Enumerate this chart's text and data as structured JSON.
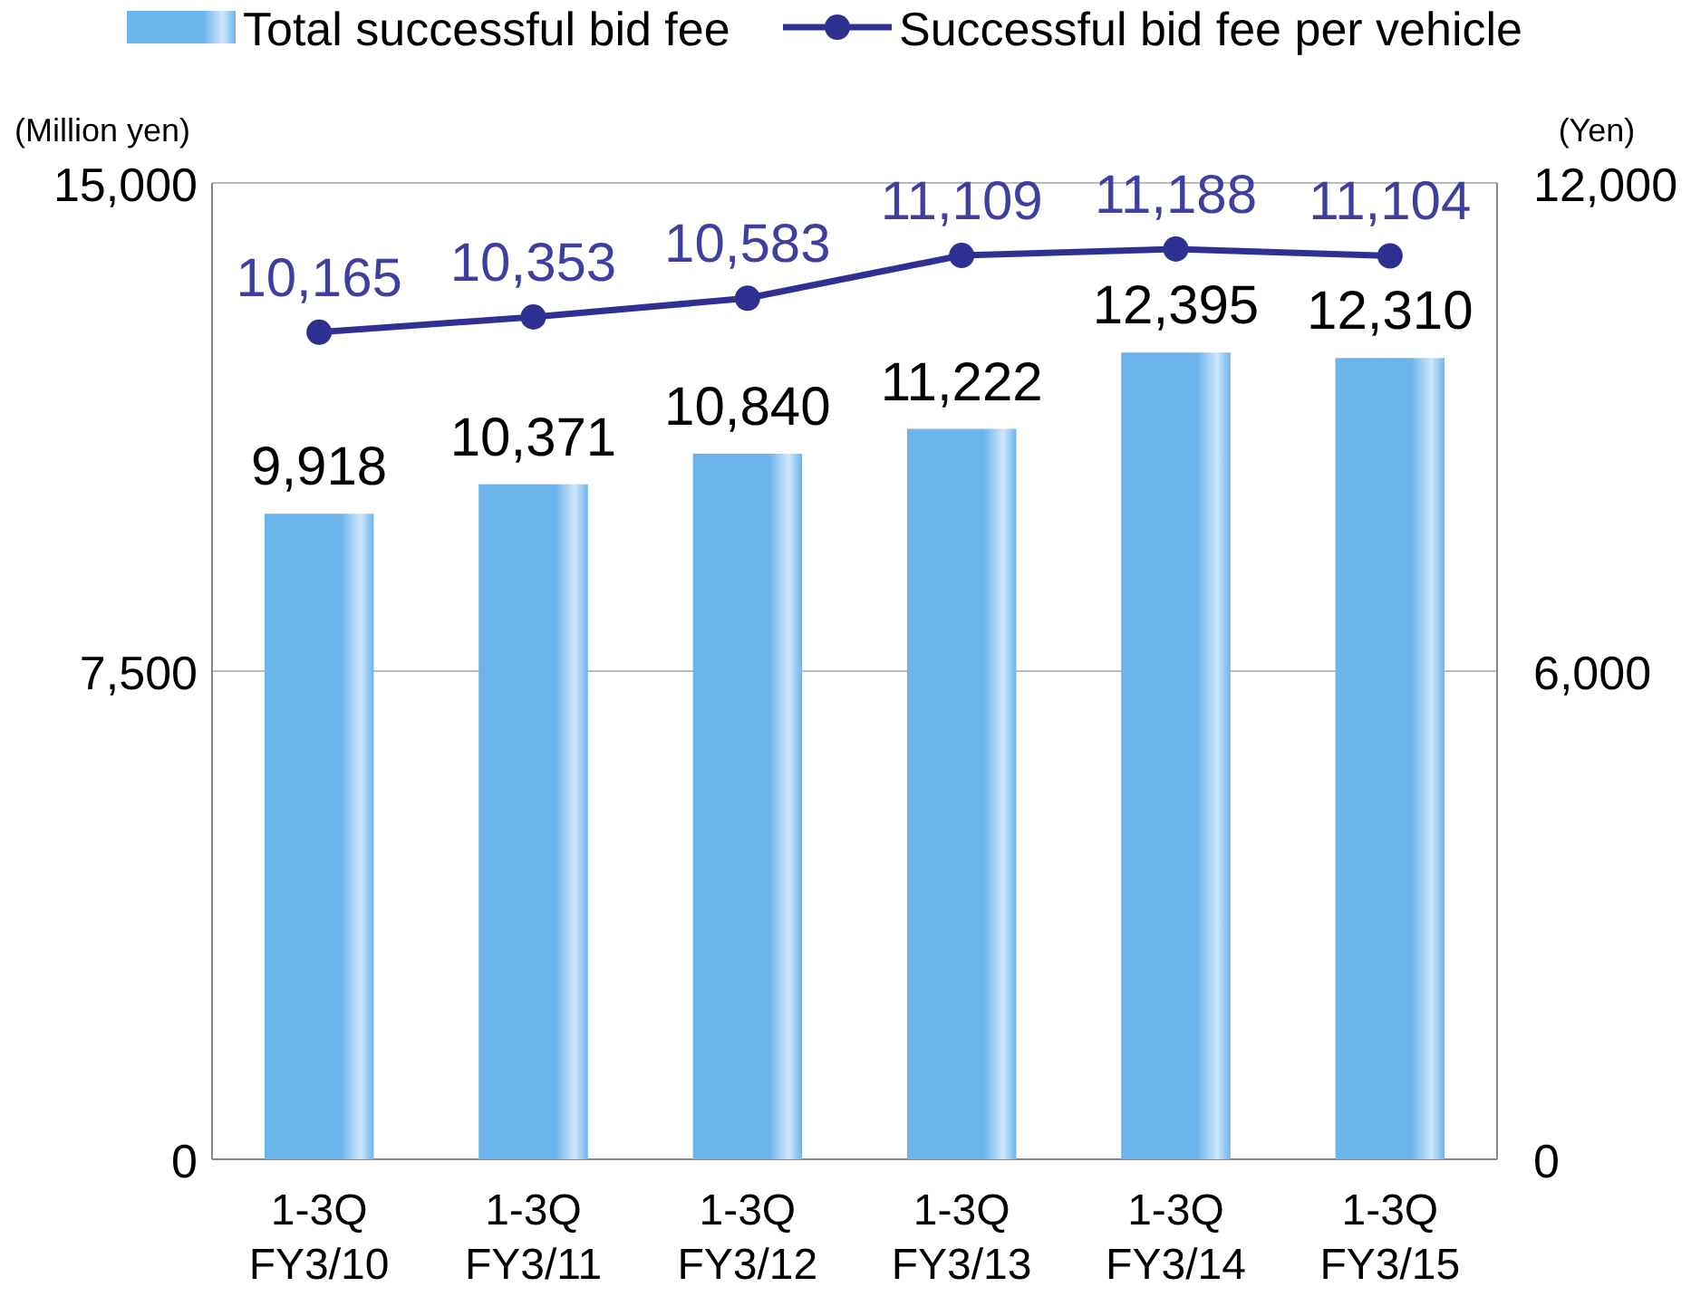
{
  "chart_data": {
    "type": "bar",
    "categories": [
      "1-3Q\nFY3/10",
      "1-3Q\nFY3/11",
      "1-3Q\nFY3/12",
      "1-3Q\nFY3/13",
      "1-3Q\nFY3/14",
      "1-3Q\nFY3/15"
    ],
    "series": [
      {
        "name": "Total successful bid fee",
        "color": "#6cb4ec",
        "values": [
          9918,
          10371,
          10840,
          11222,
          12395,
          12310
        ],
        "value_labels": [
          "9,918",
          "10,371",
          "10,840",
          "11,222",
          "12,395",
          "12,310"
        ]
      },
      {
        "name": "Successful bid fee per vehicle",
        "type": "line",
        "axis": "y2",
        "color": "#2e3192",
        "values": [
          10165,
          10353,
          10583,
          11109,
          11188,
          11104
        ],
        "value_labels": [
          "10,165",
          "10,353",
          "10,583",
          "11,109",
          "11,188",
          "11,104"
        ]
      }
    ],
    "ylabel": "(Million yen)",
    "y2label": "(Yen)",
    "ylim": [
      0,
      15000
    ],
    "yticks": [
      0,
      {
        "value": 7500,
        "label": "7,500"
      },
      {
        "value": 15000,
        "label": "15,000"
      }
    ],
    "y2lim": [
      0,
      12000
    ],
    "y2ticks": [
      0,
      {
        "value": 6000,
        "label": "6,000"
      },
      {
        "value": 12000,
        "label": "12,000"
      }
    ],
    "grid": "y",
    "legend": "top",
    "marker": "circle",
    "line_style": "solid"
  }
}
